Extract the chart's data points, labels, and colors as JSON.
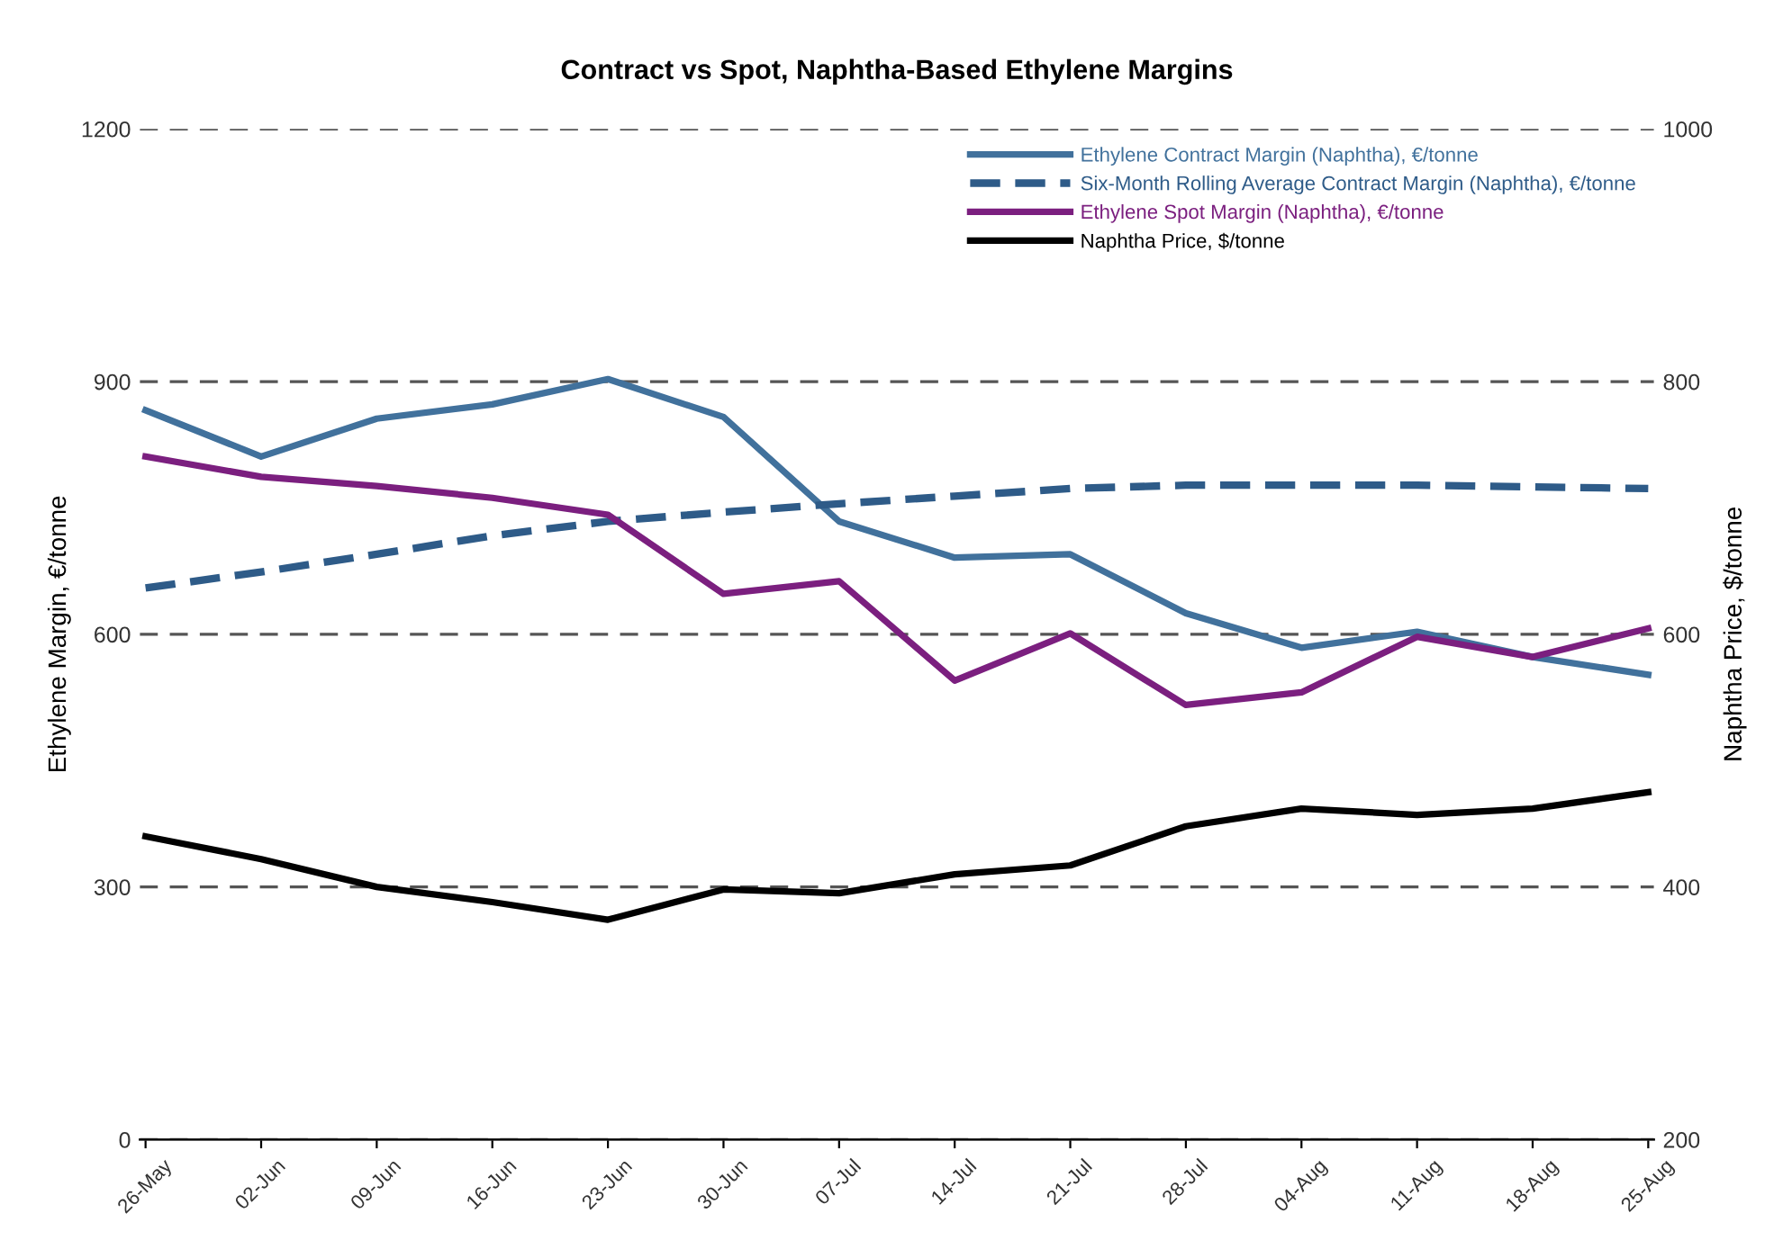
{
  "chart_data": {
    "type": "line",
    "title": "Contract vs Spot, Naphtha-Based Ethylene Margins",
    "ylabel": "Ethylene Margin, €/tonne",
    "y2label": "Naphtha Price, $/tonne",
    "categories": [
      "26-May",
      "02-Jun",
      "09-Jun",
      "16-Jun",
      "23-Jun",
      "30-Jun",
      "07-Jul",
      "14-Jul",
      "21-Jul",
      "28-Jul",
      "04-Aug",
      "11-Aug",
      "18-Aug",
      "25-Aug"
    ],
    "series": [
      {
        "name": "Ethylene Contract Margin (Naphtha), €/tonne",
        "color": "#41719c",
        "line_style": "solid",
        "values": [
          866,
          811,
          856,
          873,
          903,
          858,
          734,
          691,
          695,
          625,
          584,
          603,
          573,
          552
        ]
      },
      {
        "name": "Six-Month Rolling Average Contract Margin (Naphtha), €/tonne",
        "color": "#2e5b88",
        "line_style": "dashed",
        "values": [
          655,
          674,
          695,
          717,
          734,
          745,
          755,
          764,
          773,
          777,
          777,
          777,
          775,
          773
        ]
      },
      {
        "name": "Ethylene Spot Margin (Naphtha), €/tonne",
        "color": "#7b1f7f",
        "line_style": "solid",
        "values": [
          811,
          787,
          776,
          762,
          742,
          648,
          663,
          545,
          601,
          516,
          531,
          597,
          573,
          607
        ]
      },
      {
        "name": "Naphtha Price, $/tonne",
        "color": "#000000",
        "line_style": "solid",
        "axis": "y2",
        "values": [
          440,
          422,
          400,
          388,
          374,
          398,
          395,
          410,
          417,
          448,
          462,
          457,
          462,
          475
        ]
      }
    ],
    "ylim": [
      0,
      1200
    ],
    "yticks": [
      0,
      300,
      600,
      900,
      1200
    ],
    "y2lim": [
      200,
      1000
    ],
    "y2ticks": [
      200,
      400,
      600,
      800,
      1000
    ],
    "grid": "y",
    "legend": "top right",
    "marker": "none"
  }
}
